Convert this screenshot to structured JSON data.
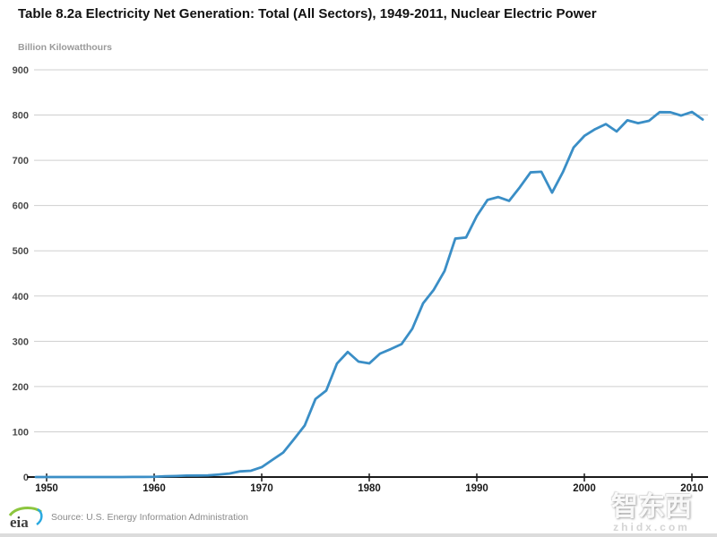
{
  "header": {
    "title": "Table 8.2a Electricity Net Generation: Total (All Sectors), 1949-2011, Nuclear Electric Power",
    "units_label": "Billion Kilowatthours"
  },
  "footer": {
    "logo": "eia",
    "source": "Source: U.S. Energy Information Administration"
  },
  "watermark": {
    "cn": "智东西",
    "url": "zhidx.com"
  },
  "colors": {
    "line": "#3a8ec6",
    "grid": "#cfcfcf",
    "axis": "#1a1a1a",
    "ytick_label": "#4a4a4a",
    "xtick_label": "#1a1a1a"
  },
  "chart_data": {
    "type": "line",
    "title": "Table 8.2a Electricity Net Generation: Total (All Sectors), 1949-2011, Nuclear Electric Power",
    "xlabel": "",
    "ylabel": "Billion Kilowatthours",
    "ylim": [
      0,
      900
    ],
    "yticks": [
      0,
      100,
      200,
      300,
      400,
      500,
      600,
      700,
      800,
      900
    ],
    "xticks": [
      1950,
      1960,
      1970,
      1980,
      1990,
      2000,
      2010
    ],
    "grid": "horizontal",
    "legend_position": "none",
    "x": [
      1949,
      1950,
      1951,
      1952,
      1953,
      1954,
      1955,
      1956,
      1957,
      1958,
      1959,
      1960,
      1961,
      1962,
      1963,
      1964,
      1965,
      1966,
      1967,
      1968,
      1969,
      1970,
      1971,
      1972,
      1973,
      1974,
      1975,
      1976,
      1977,
      1978,
      1979,
      1980,
      1981,
      1982,
      1983,
      1984,
      1985,
      1986,
      1987,
      1988,
      1989,
      1990,
      1991,
      1992,
      1993,
      1994,
      1995,
      1996,
      1997,
      1998,
      1999,
      2000,
      2001,
      2002,
      2003,
      2004,
      2005,
      2006,
      2007,
      2008,
      2009,
      2010,
      2011
    ],
    "series": [
      {
        "name": "Nuclear Electric Power",
        "values": [
          0,
          0,
          0,
          0,
          0,
          0,
          0,
          0,
          0.01,
          0.2,
          0.2,
          0.5,
          1.7,
          2.3,
          3.2,
          3.3,
          3.7,
          5.5,
          7.7,
          12.5,
          13.9,
          21.8,
          38.1,
          54.1,
          83.5,
          114.0,
          172.5,
          191.1,
          250.9,
          276.4,
          255.2,
          251.1,
          272.7,
          282.8,
          293.7,
          327.6,
          383.7,
          414.0,
          455.3,
          527.0,
          529.4,
          576.9,
          612.6,
          618.8,
          610.3,
          640.4,
          673.4,
          674.7,
          628.6,
          673.7,
          728.3,
          753.9,
          768.8,
          780.1,
          763.7,
          788.5,
          782.0,
          787.2,
          806.4,
          806.2,
          798.9,
          807.0,
          790.2
        ]
      }
    ]
  }
}
